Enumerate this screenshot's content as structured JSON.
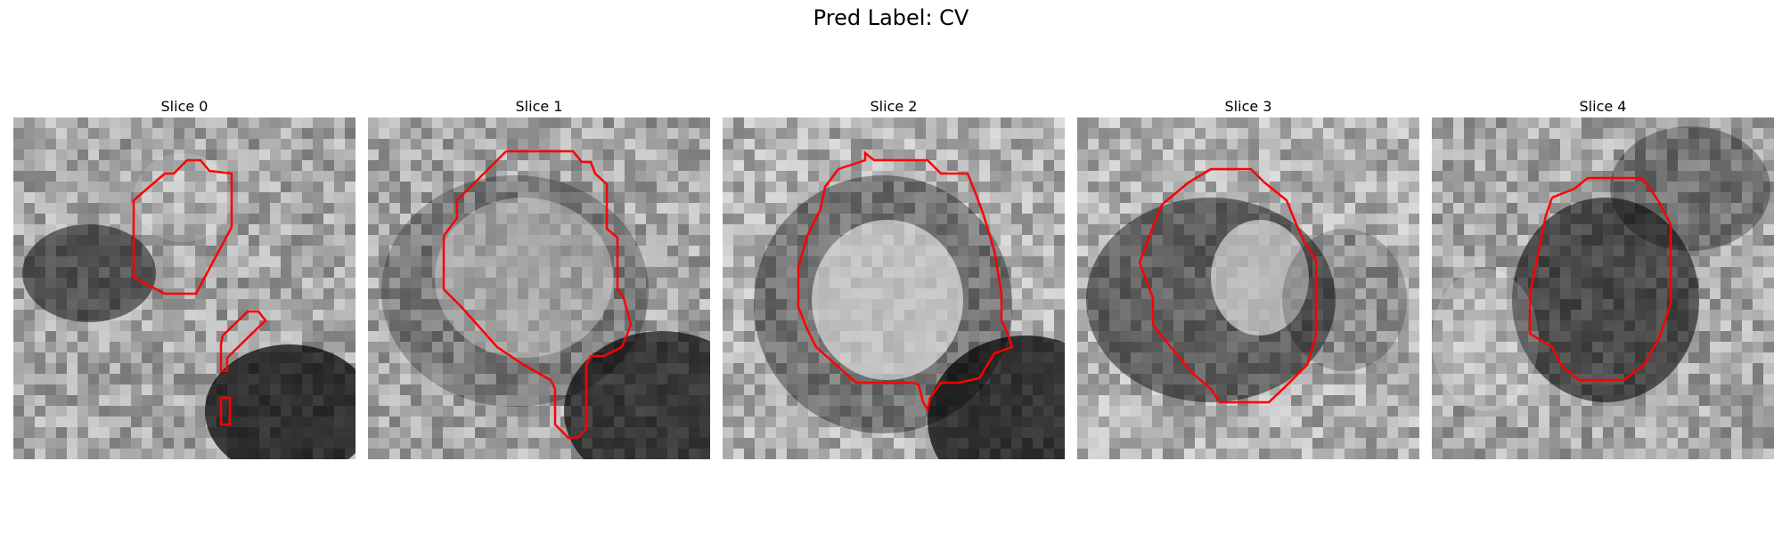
{
  "figure": {
    "title": "Pred Label: CV"
  },
  "colors": {
    "contour": "#ff0000",
    "background": "#ffffff"
  },
  "slices": [
    {
      "title": "Slice 0",
      "tone": "neutral"
    },
    {
      "title": "Slice 1",
      "tone": "neutral"
    },
    {
      "title": "Slice 2",
      "tone": "light-center"
    },
    {
      "title": "Slice 3",
      "tone": "light-center"
    },
    {
      "title": "Slice 4",
      "tone": "dark-center"
    }
  ]
}
